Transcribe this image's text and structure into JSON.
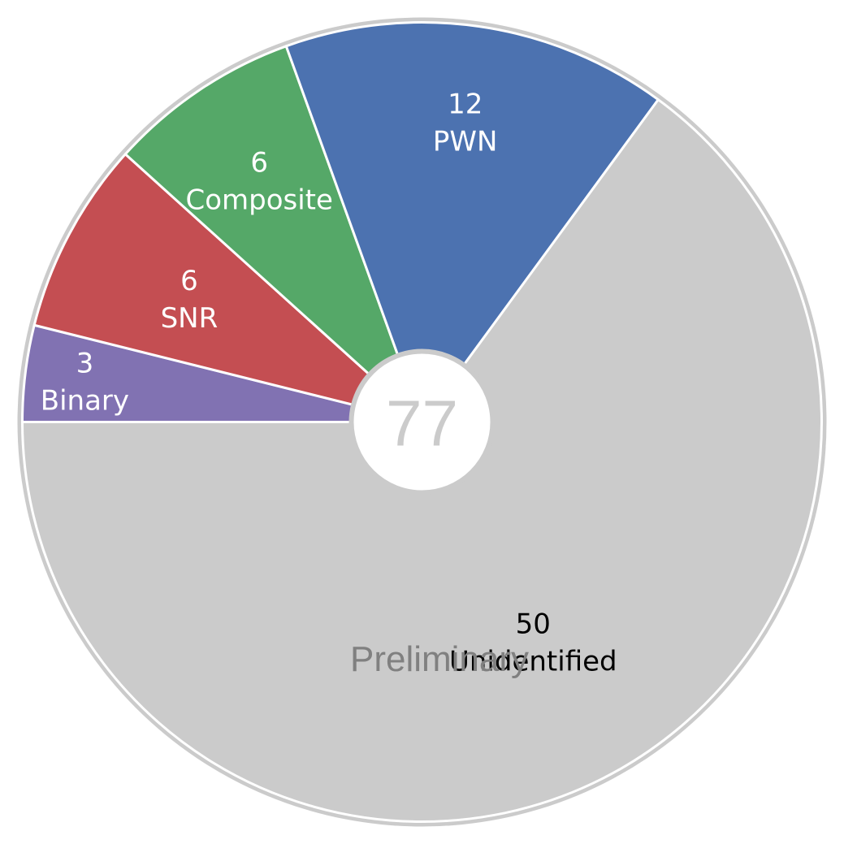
{
  "chart_data": {
    "type": "pie",
    "total": "77",
    "note": "Preliminary",
    "slices": [
      {
        "value": 50,
        "count": "50",
        "label": "Unidentified",
        "color": "#cbcbcb",
        "text_color": "#000000"
      },
      {
        "value": 3,
        "count": "3",
        "label": "Binary",
        "color": "#8172b2",
        "text_color": "#ffffff"
      },
      {
        "value": 6,
        "count": "6",
        "label": "SNR",
        "color": "#c44e52",
        "text_color": "#ffffff"
      },
      {
        "value": 6,
        "count": "6",
        "label": "Composite",
        "color": "#55a868",
        "text_color": "#ffffff"
      },
      {
        "value": 12,
        "count": "12",
        "label": "PWN",
        "color": "#4c72b0",
        "text_color": "#ffffff"
      }
    ],
    "colors": {
      "outer_ring": "#cbcbcb",
      "separator": "#ffffff",
      "center_fill": "#ffffff",
      "center_ring": "#cbcbcb",
      "center_text": "#cbcbcb",
      "note_text": "#808080"
    }
  }
}
